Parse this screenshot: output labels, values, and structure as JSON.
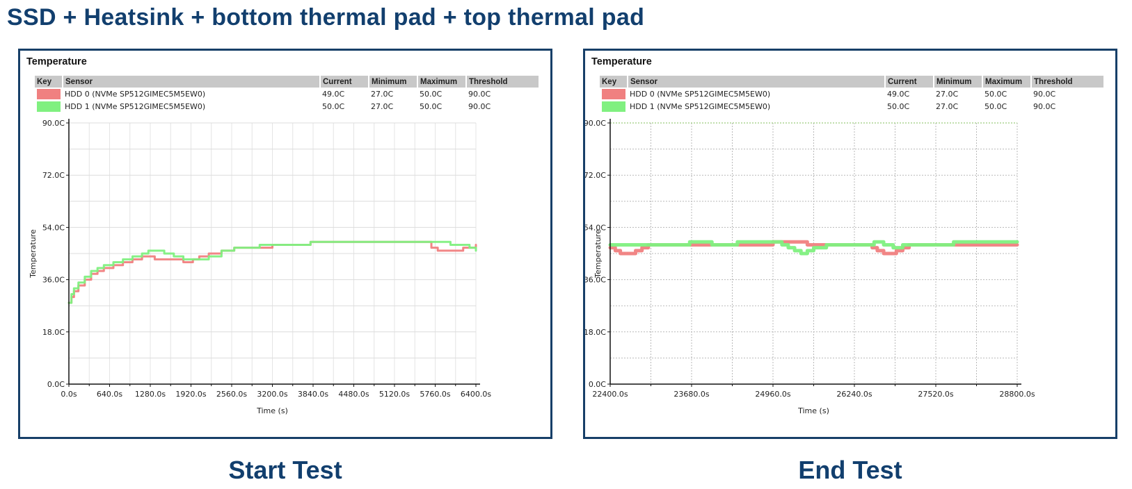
{
  "page": {
    "title": "SSD + Heatsink + bottom thermal pad + top thermal pad",
    "colors": {
      "title": "#123f6e",
      "frame": "#173f68",
      "hdd0": "#f08080",
      "hdd1": "#80f080"
    }
  },
  "panels": [
    {
      "heading": "Temperature",
      "caption": "Start Test",
      "legend": {
        "headers": [
          "Key",
          "Sensor",
          "Current",
          "Minimum",
          "Maximum",
          "Threshold"
        ],
        "rows": [
          {
            "sensor": "HDD 0 (NVMe SP512GIMEC5M5EW0)",
            "current": "49.0C",
            "minimum": "27.0C",
            "maximum": "50.0C",
            "threshold": "90.0C",
            "color": "#f08080"
          },
          {
            "sensor": "HDD 1 (NVMe SP512GIMEC5M5EW0)",
            "current": "50.0C",
            "minimum": "27.0C",
            "maximum": "50.0C",
            "threshold": "90.0C",
            "color": "#80f080"
          }
        ]
      }
    },
    {
      "heading": "Temperature",
      "caption": "End Test",
      "legend": {
        "headers": [
          "Key",
          "Sensor",
          "Current",
          "Minimum",
          "Maximum",
          "Threshold"
        ],
        "rows": [
          {
            "sensor": "HDD 0 (NVMe SP512GIMEC5M5EW0)",
            "current": "49.0C",
            "minimum": "27.0C",
            "maximum": "50.0C",
            "threshold": "90.0C",
            "color": "#f08080"
          },
          {
            "sensor": "HDD 1 (NVMe SP512GIMEC5M5EW0)",
            "current": "50.0C",
            "minimum": "27.0C",
            "maximum": "50.0C",
            "threshold": "90.0C",
            "color": "#80f080"
          }
        ]
      }
    }
  ],
  "chart_data": [
    {
      "type": "line",
      "title": "Temperature",
      "xlabel": "Time (s)",
      "ylabel": "Temperature",
      "xlim": [
        0,
        6400
      ],
      "ylim": [
        0,
        90
      ],
      "xticks": [
        "0.0s",
        "640.0s",
        "1280.0s",
        "1920.0s",
        "2560.0s",
        "3200.0s",
        "3840.0s",
        "4480.0s",
        "5120.0s",
        "5760.0s",
        "6400.0s"
      ],
      "xtick_values": [
        0,
        640,
        1280,
        1920,
        2560,
        3200,
        3840,
        4480,
        5120,
        5760,
        6400
      ],
      "yticks": [
        "0.0C",
        "18.0C",
        "36.0C",
        "54.0C",
        "72.0C",
        "90.0C"
      ],
      "ytick_values": [
        0,
        18,
        36,
        54,
        72,
        90
      ],
      "grid": true,
      "legend_position": "top",
      "series": [
        {
          "name": "HDD 0 (NVMe SP512GIMEC5M5EW0)",
          "color": "#f08080",
          "x": [
            0,
            40,
            80,
            150,
            250,
            350,
            450,
            550,
            700,
            850,
            1000,
            1150,
            1250,
            1350,
            1500,
            1650,
            1800,
            1950,
            2050,
            2200,
            2400,
            2600,
            2800,
            3000,
            3200,
            3500,
            3800,
            4200,
            4600,
            5000,
            5400,
            5600,
            5700,
            5800,
            6000,
            6200,
            6400
          ],
          "y": [
            28,
            30,
            32,
            34,
            36,
            38,
            39,
            40,
            41,
            42,
            43,
            44,
            44,
            43,
            43,
            43,
            42,
            43,
            44,
            45,
            46,
            47,
            47,
            47,
            48,
            48,
            49,
            49,
            49,
            49,
            49,
            49,
            47,
            46,
            46,
            47,
            48
          ]
        },
        {
          "name": "HDD 1 (NVMe SP512GIMEC5M5EW0)",
          "color": "#80f080",
          "x": [
            0,
            40,
            80,
            150,
            250,
            350,
            450,
            550,
            700,
            850,
            1000,
            1150,
            1250,
            1350,
            1500,
            1650,
            1800,
            1950,
            2050,
            2200,
            2400,
            2600,
            2800,
            3000,
            3200,
            3500,
            3800,
            4200,
            4600,
            5000,
            5400,
            5600,
            5800,
            6000,
            6200,
            6300,
            6400
          ],
          "y": [
            28,
            31,
            33,
            35,
            37,
            39,
            40,
            41,
            42,
            43,
            44,
            45,
            46,
            46,
            45,
            44,
            43,
            43,
            43,
            44,
            46,
            47,
            47,
            48,
            48,
            48,
            49,
            49,
            49,
            49,
            49,
            49,
            49,
            48,
            48,
            47,
            46
          ]
        }
      ]
    },
    {
      "type": "line",
      "title": "Temperature",
      "xlabel": "Time (s)",
      "ylabel": "Temperature",
      "xlim": [
        22400,
        28800
      ],
      "ylim": [
        0,
        90
      ],
      "xticks": [
        "22400.0s",
        "23680.0s",
        "24960.0s",
        "26240.0s",
        "27520.0s",
        "28800.0s"
      ],
      "xtick_values": [
        22400,
        23680,
        24960,
        26240,
        27520,
        28800
      ],
      "yticks": [
        "0.0C",
        "18.0C",
        "36.0C",
        "54.0C",
        "72.0C",
        "90.0C"
      ],
      "ytick_values": [
        0,
        18,
        36,
        54,
        72,
        90
      ],
      "threshold": 90,
      "grid": true,
      "legend_position": "top",
      "series": [
        {
          "name": "HDD 0 (NVMe SP512GIMEC5M5EW0)",
          "color": "#f08080",
          "x": [
            22400,
            22480,
            22560,
            22700,
            22800,
            22900,
            23000,
            23200,
            23500,
            23800,
            24100,
            24400,
            24700,
            24960,
            25100,
            25300,
            25500,
            25700,
            25900,
            26200,
            26400,
            26520,
            26600,
            26700,
            26800,
            26900,
            27000,
            27100,
            27300,
            27600,
            27900,
            28200,
            28500,
            28800
          ],
          "y": [
            47,
            46,
            45,
            45,
            46,
            47,
            48,
            48,
            48,
            48,
            48,
            48,
            48,
            49,
            49,
            49,
            48,
            48,
            48,
            48,
            48,
            47,
            46,
            45,
            45,
            46,
            47,
            48,
            48,
            48,
            48,
            48,
            48,
            48
          ]
        },
        {
          "name": "HDD 1 (NVMe SP512GIMEC5M5EW0)",
          "color": "#80f080",
          "x": [
            22400,
            22600,
            22800,
            23000,
            23200,
            23500,
            23650,
            23800,
            24000,
            24200,
            24400,
            24700,
            24960,
            25100,
            25200,
            25300,
            25400,
            25500,
            25600,
            25800,
            26100,
            26400,
            26550,
            26700,
            26850,
            27000,
            27200,
            27500,
            27800,
            28100,
            28400,
            28800
          ],
          "y": [
            48,
            48,
            48,
            48,
            48,
            48,
            49,
            49,
            48,
            48,
            49,
            49,
            49,
            48,
            47,
            46,
            45,
            46,
            47,
            48,
            48,
            48,
            49,
            48,
            47,
            48,
            48,
            48,
            49,
            49,
            49,
            49
          ]
        }
      ]
    }
  ]
}
